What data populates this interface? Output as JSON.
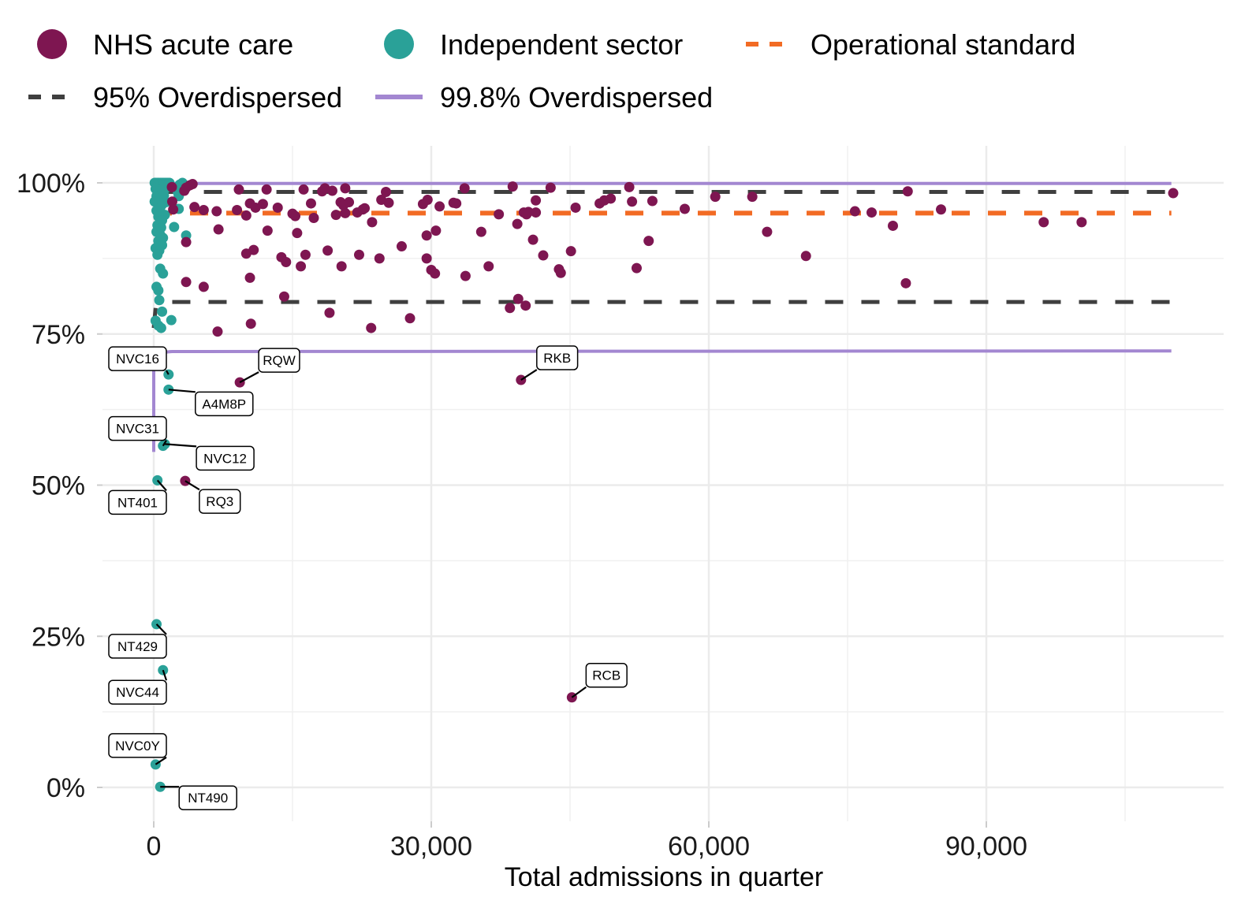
{
  "chart_data": {
    "type": "scatter",
    "title": "",
    "xlabel": "Total admissions in quarter",
    "ylabel": "",
    "xlim": [
      -5000,
      112000
    ],
    "ylim": [
      -5,
      102
    ],
    "x_ticks": [
      0,
      30000,
      60000,
      90000
    ],
    "x_tick_labels": [
      "0",
      "30,000",
      "60,000",
      "90,000"
    ],
    "y_ticks": [
      0,
      25,
      50,
      75,
      100
    ],
    "y_tick_labels": [
      "0%",
      "25%",
      "50%",
      "75%",
      "100%"
    ],
    "grid": true,
    "legend_position": "top",
    "legend": [
      {
        "name": "NHS acute care",
        "kind": "point",
        "color": "#7e1651"
      },
      {
        "name": "Independent sector",
        "kind": "point",
        "color": "#2aa198"
      },
      {
        "name": "Operational standard",
        "kind": "dashed-line",
        "color": "#f26b24"
      },
      {
        "name": "95% Overdispersed",
        "kind": "dashed-line",
        "color": "#3f3f3f"
      },
      {
        "name": "99.8% Overdispersed",
        "kind": "solid-line",
        "color": "#a387d1"
      }
    ],
    "reference_lines": {
      "operational_standard": {
        "y": 95,
        "x_range": [
          0,
          110000
        ]
      },
      "overdispersed_95_upper": {
        "y": 98.5,
        "x_range": [
          0,
          110000
        ]
      },
      "overdispersed_95_lower": {
        "y": 80.3,
        "x_range": [
          0,
          110000
        ],
        "y_at_min_x": 76
      },
      "overdispersed_998_upper": {
        "y": 99.9,
        "x_range": [
          0,
          110000
        ]
      },
      "overdispersed_998_lower": {
        "y": 72.2,
        "x_range": [
          0,
          110000
        ],
        "y_at_min_x": 55.5
      }
    },
    "series": [
      {
        "name": "NHS acute care",
        "color": "#7e1651",
        "points": [
          [
            1960,
            99.3
          ],
          [
            2000,
            96.9
          ],
          [
            3300,
            98.7
          ],
          [
            3500,
            99.2
          ],
          [
            3900,
            99.6
          ],
          [
            4200,
            99.8
          ],
          [
            2100,
            95.6
          ],
          [
            4400,
            96.0
          ],
          [
            5400,
            95.5
          ],
          [
            6800,
            95.3
          ],
          [
            3500,
            90.2
          ],
          [
            3500,
            83.6
          ],
          [
            5400,
            82.8
          ],
          [
            7000,
            92.3
          ],
          [
            6900,
            75.4
          ],
          [
            9000,
            95.5
          ],
          [
            9200,
            98.9
          ],
          [
            10000,
            94.6
          ],
          [
            10400,
            96.6
          ],
          [
            11000,
            95.9
          ],
          [
            11800,
            96.5
          ],
          [
            12200,
            98.9
          ],
          [
            13400,
            95.9
          ],
          [
            10000,
            88.3
          ],
          [
            10800,
            88.9
          ],
          [
            10400,
            84.3
          ],
          [
            10500,
            76.7
          ],
          [
            12300,
            92.1
          ],
          [
            13800,
            87.7
          ],
          [
            14300,
            86.9
          ],
          [
            14100,
            81.2
          ],
          [
            15000,
            94.9
          ],
          [
            15300,
            94.5
          ],
          [
            15500,
            91.7
          ],
          [
            15900,
            86.2
          ],
          [
            16400,
            88.1
          ],
          [
            16200,
            98.9
          ],
          [
            17000,
            96.6
          ],
          [
            17300,
            94.2
          ],
          [
            18200,
            98.6
          ],
          [
            18500,
            99.1
          ],
          [
            18800,
            88.8
          ],
          [
            19000,
            78.5
          ],
          [
            19700,
            94.7
          ],
          [
            20200,
            96.8
          ],
          [
            20500,
            96.3
          ],
          [
            20700,
            95.0
          ],
          [
            19300,
            98.7
          ],
          [
            20700,
            99.1
          ],
          [
            20300,
            86.2
          ],
          [
            21100,
            96.8
          ],
          [
            22200,
            88.1
          ],
          [
            22000,
            95.1
          ],
          [
            22600,
            95.6
          ],
          [
            22800,
            95.8
          ],
          [
            23600,
            93.5
          ],
          [
            24400,
            87.5
          ],
          [
            23500,
            76.0
          ],
          [
            24600,
            97.2
          ],
          [
            25100,
            98.5
          ],
          [
            25400,
            96.7
          ],
          [
            26800,
            89.5
          ],
          [
            27700,
            77.6
          ],
          [
            29100,
            96.5
          ],
          [
            29500,
            91.3
          ],
          [
            29600,
            97.2
          ],
          [
            29500,
            87.5
          ],
          [
            30000,
            85.6
          ],
          [
            30500,
            92.1
          ],
          [
            30400,
            85.0
          ],
          [
            30900,
            96.1
          ],
          [
            32400,
            96.7
          ],
          [
            32700,
            96.6
          ],
          [
            33600,
            99.1
          ],
          [
            33700,
            84.6
          ],
          [
            35400,
            91.9
          ],
          [
            36200,
            86.2
          ],
          [
            37300,
            94.8
          ],
          [
            38500,
            79.3
          ],
          [
            38800,
            99.4
          ],
          [
            39300,
            93.2
          ],
          [
            39400,
            80.8
          ],
          [
            40200,
            79.7
          ],
          [
            40000,
            95.1
          ],
          [
            40300,
            94.8
          ],
          [
            40500,
            95.2
          ],
          [
            41000,
            90.6
          ],
          [
            41300,
            97.1
          ],
          [
            41300,
            95.1
          ],
          [
            42100,
            88.0
          ],
          [
            42900,
            99.2
          ],
          [
            43800,
            85.7
          ],
          [
            44000,
            85.1
          ],
          [
            45100,
            88.7
          ],
          [
            45600,
            95.9
          ],
          [
            48200,
            96.6
          ],
          [
            48700,
            97.1
          ],
          [
            49400,
            97.4
          ],
          [
            51400,
            99.3
          ],
          [
            51700,
            96.9
          ],
          [
            52200,
            85.9
          ],
          [
            53500,
            90.4
          ],
          [
            53900,
            97.0
          ],
          [
            57400,
            95.7
          ],
          [
            60700,
            97.7
          ],
          [
            64700,
            97.7
          ],
          [
            66300,
            91.9
          ],
          [
            70500,
            87.9
          ],
          [
            75800,
            95.3
          ],
          [
            77600,
            95.1
          ],
          [
            79900,
            92.9
          ],
          [
            81300,
            83.4
          ],
          [
            81500,
            98.6
          ],
          [
            85100,
            95.6
          ],
          [
            96200,
            93.5
          ],
          [
            100300,
            93.5
          ],
          [
            110200,
            98.3
          ],
          [
            9300,
            67.0
          ],
          [
            39700,
            67.4
          ],
          [
            3400,
            50.7
          ],
          [
            45200,
            14.9
          ]
        ],
        "labels": [
          {
            "text": "RQW",
            "point": [
              9300,
              67.0
            ]
          },
          {
            "text": "RKB",
            "point": [
              39700,
              67.4
            ]
          },
          {
            "text": "RQ3",
            "point": [
              3400,
              50.7
            ]
          },
          {
            "text": "RCB",
            "point": [
              45200,
              14.9
            ]
          }
        ]
      },
      {
        "name": "Independent sector",
        "color": "#2aa198",
        "points": [
          [
            100,
            100.0
          ],
          [
            200,
            100.0
          ],
          [
            300,
            99.9
          ],
          [
            400,
            100.0
          ],
          [
            500,
            100.0
          ],
          [
            600,
            99.8
          ],
          [
            700,
            100.0
          ],
          [
            800,
            99.9
          ],
          [
            900,
            100.0
          ],
          [
            1000,
            99.7
          ],
          [
            1100,
            100.0
          ],
          [
            1200,
            99.9
          ],
          [
            1300,
            100.0
          ],
          [
            1400,
            99.8
          ],
          [
            1500,
            100.0
          ],
          [
            1600,
            99.9
          ],
          [
            1700,
            100.0
          ],
          [
            200,
            99.0
          ],
          [
            500,
            98.6
          ],
          [
            900,
            98.9
          ],
          [
            1300,
            99.1
          ],
          [
            300,
            97.8
          ],
          [
            700,
            97.5
          ],
          [
            1100,
            97.9
          ],
          [
            100,
            96.9
          ],
          [
            500,
            96.6
          ],
          [
            900,
            96.4
          ],
          [
            1300,
            96.8
          ],
          [
            2800,
            99.7
          ],
          [
            3100,
            100.0
          ],
          [
            2600,
            98.5
          ],
          [
            2700,
            97.8
          ],
          [
            300,
            95.4
          ],
          [
            700,
            95.9
          ],
          [
            1200,
            94.7
          ],
          [
            2700,
            95.7
          ],
          [
            500,
            94.4
          ],
          [
            900,
            93.8
          ],
          [
            400,
            93.0
          ],
          [
            800,
            92.6
          ],
          [
            2200,
            92.7
          ],
          [
            300,
            91.9
          ],
          [
            700,
            91.4
          ],
          [
            1000,
            90.9
          ],
          [
            3500,
            91.3
          ],
          [
            500,
            90.4
          ],
          [
            900,
            89.7
          ],
          [
            200,
            89.2
          ],
          [
            600,
            88.8
          ],
          [
            400,
            88.1
          ],
          [
            700,
            85.8
          ],
          [
            1000,
            85.0
          ],
          [
            300,
            82.8
          ],
          [
            500,
            82.2
          ],
          [
            600,
            80.6
          ],
          [
            900,
            78.7
          ],
          [
            200,
            77.2
          ],
          [
            1900,
            77.3
          ],
          [
            500,
            76.4
          ],
          [
            800,
            76.0
          ],
          [
            1600,
            68.3
          ],
          [
            1600,
            65.8
          ],
          [
            1200,
            56.8
          ],
          [
            1000,
            56.5
          ],
          [
            400,
            50.8
          ],
          [
            300,
            27.0
          ],
          [
            1000,
            19.4
          ],
          [
            200,
            3.8
          ],
          [
            700,
            0.1
          ]
        ],
        "labels": [
          {
            "text": "NVC16",
            "point": [
              1600,
              68.3
            ]
          },
          {
            "text": "A4M8P",
            "point": [
              1600,
              65.8
            ]
          },
          {
            "text": "NVC31",
            "point": [
              1000,
              56.5
            ]
          },
          {
            "text": "NVC12",
            "point": [
              1200,
              56.8
            ]
          },
          {
            "text": "NT401",
            "point": [
              400,
              50.8
            ]
          },
          {
            "text": "NT429",
            "point": [
              300,
              27.0
            ]
          },
          {
            "text": "NVC44",
            "point": [
              1000,
              19.4
            ]
          },
          {
            "text": "NVC0Y",
            "point": [
              200,
              3.8
            ]
          },
          {
            "text": "NT490",
            "point": [
              700,
              0.1
            ]
          }
        ]
      }
    ]
  }
}
